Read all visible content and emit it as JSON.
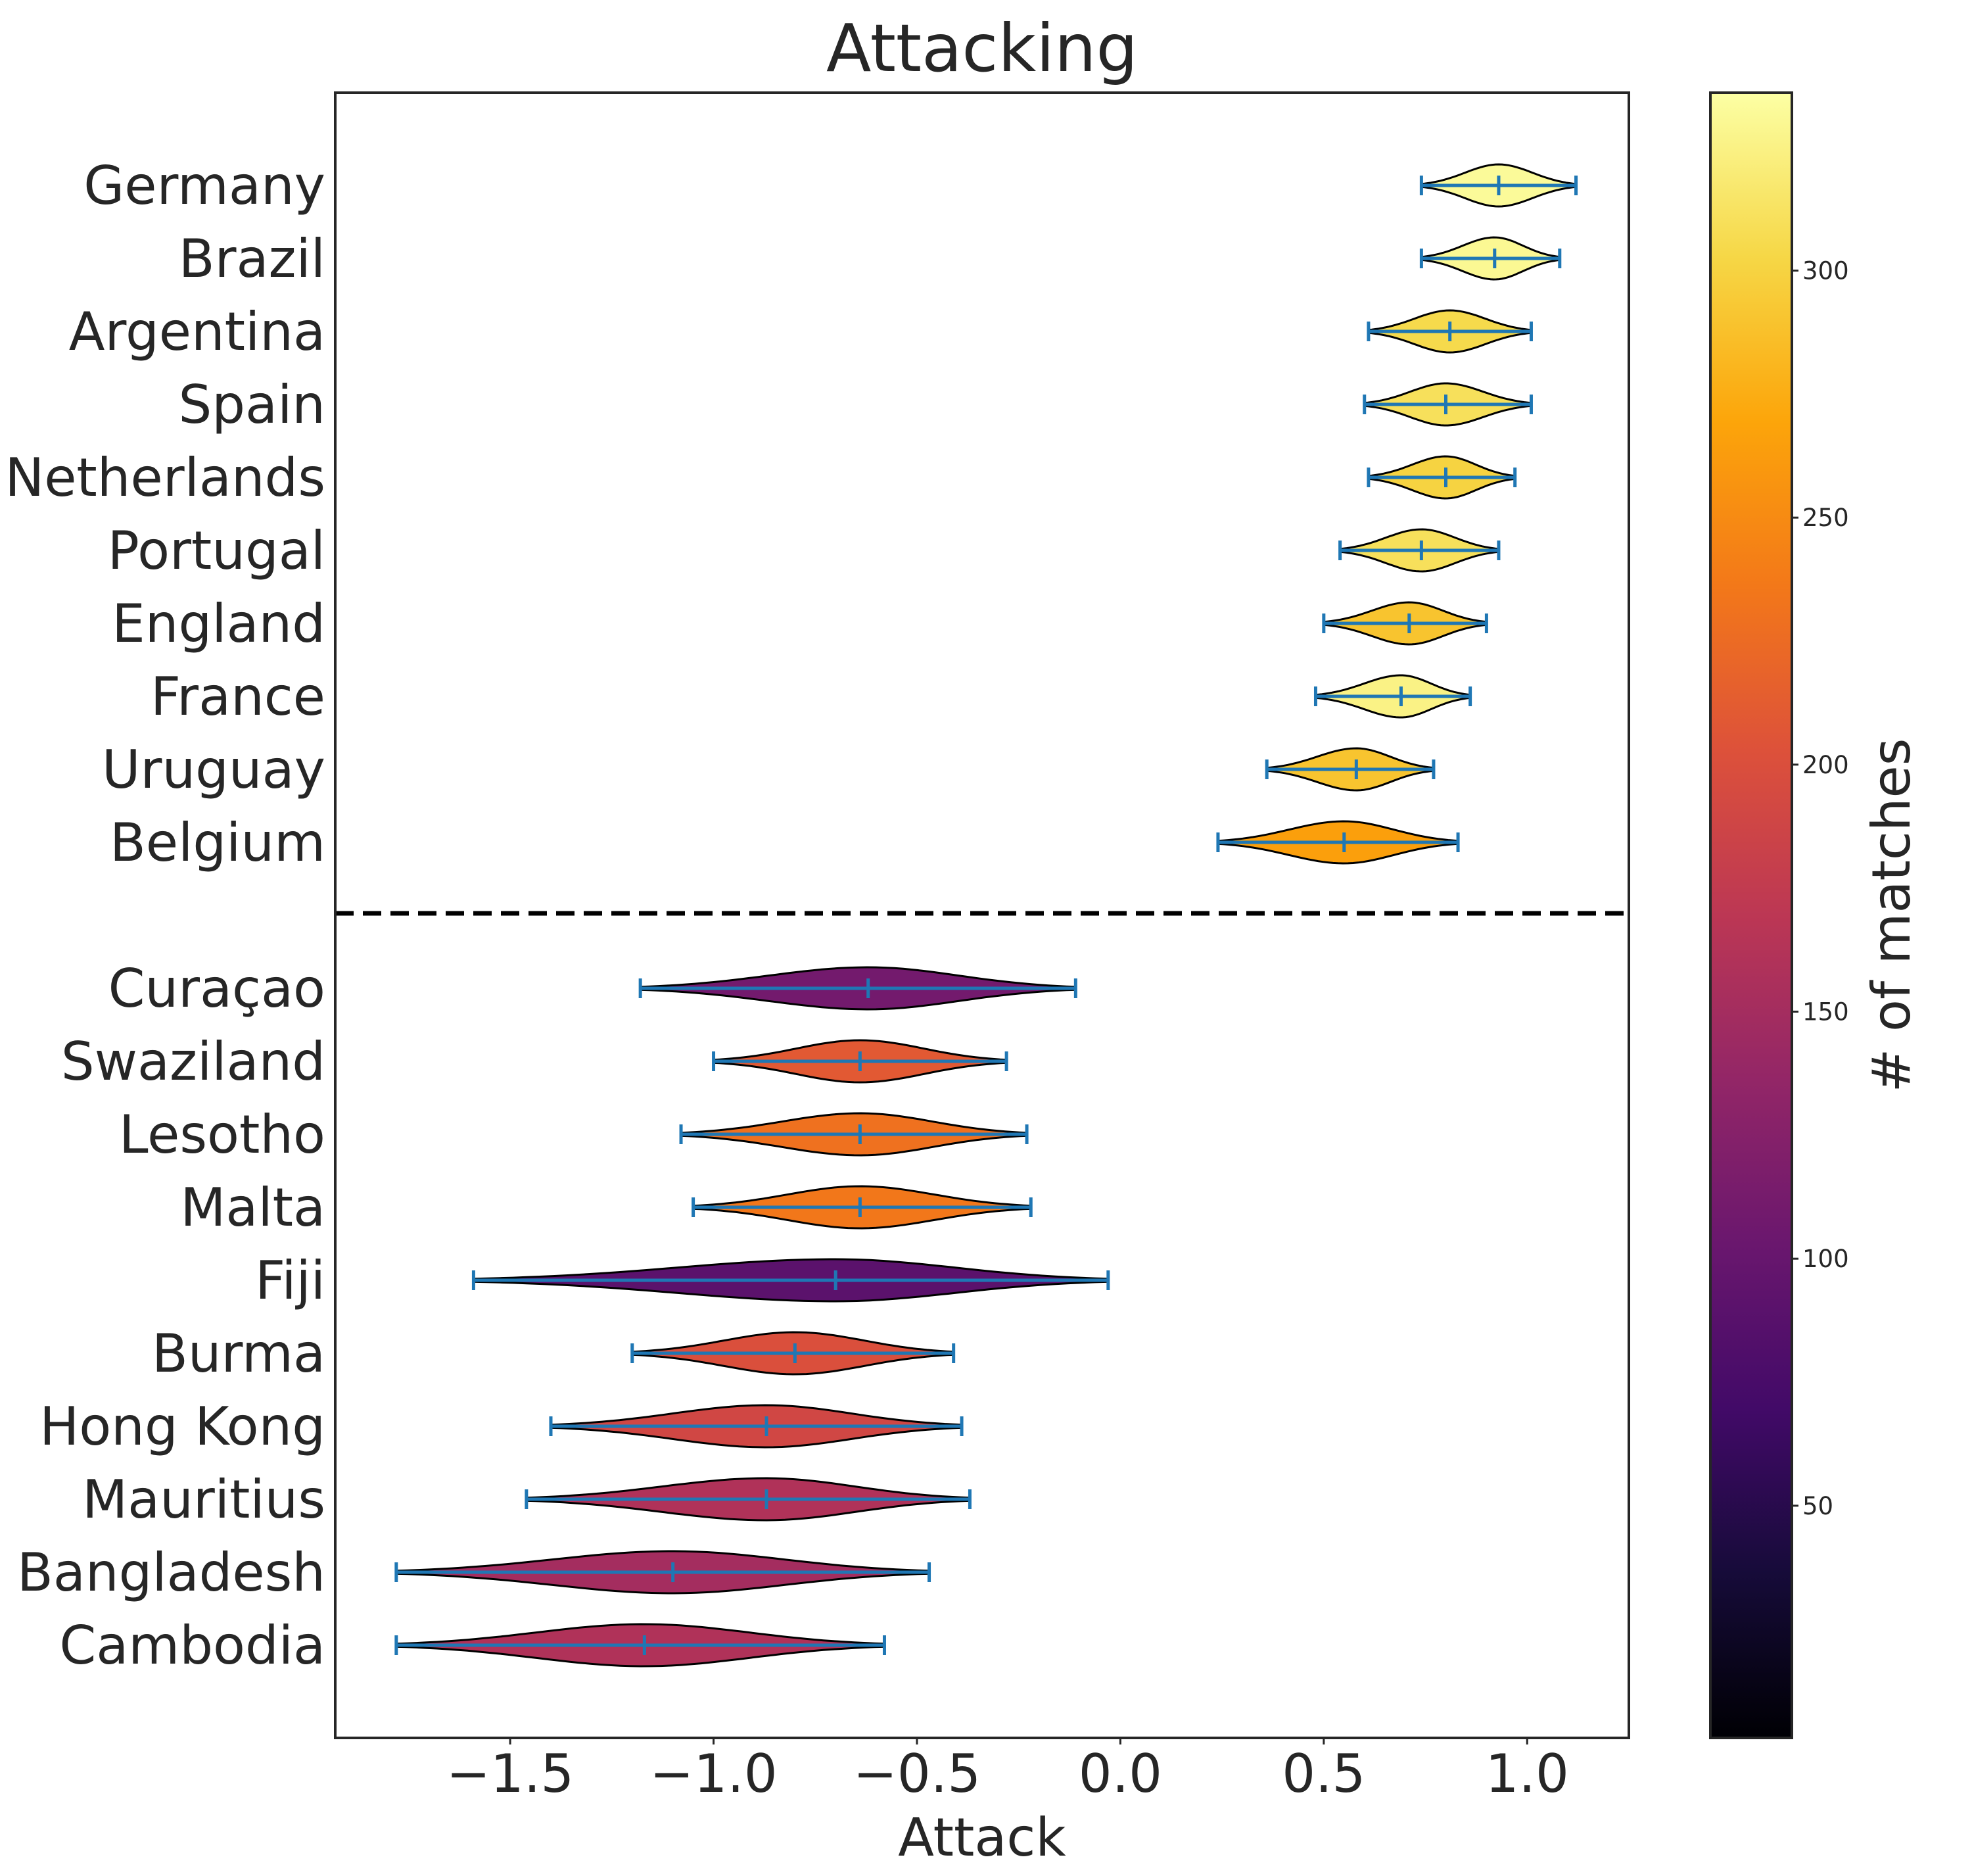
{
  "chart_data": {
    "type": "violin",
    "title": "Attacking",
    "xlabel": "Attack",
    "ylabel": "",
    "xlim": [
      -1.93,
      1.25
    ],
    "xticks": [
      -1.5,
      -1.0,
      -0.5,
      0.0,
      0.5,
      1.0
    ],
    "xtick_labels": [
      "−1.5",
      "−1.0",
      "−0.5",
      "0.0",
      "0.5",
      "1.0"
    ],
    "grid": false,
    "separator": "dashed line between top-10 and bottom-10 teams",
    "colorbar": {
      "label": "# of matches",
      "colormap": "inferno",
      "range": [
        3,
        336
      ],
      "ticks": [
        50,
        100,
        150,
        200,
        250,
        300
      ]
    },
    "teams": [
      {
        "name": "Germany",
        "group": "top",
        "min": 0.74,
        "max": 1.12,
        "mean": 0.93,
        "matches": 332
      },
      {
        "name": "Brazil",
        "group": "top",
        "min": 0.74,
        "max": 1.08,
        "mean": 0.92,
        "matches": 330
      },
      {
        "name": "Argentina",
        "group": "top",
        "min": 0.61,
        "max": 1.01,
        "mean": 0.81,
        "matches": 305
      },
      {
        "name": "Spain",
        "group": "top",
        "min": 0.6,
        "max": 1.01,
        "mean": 0.8,
        "matches": 310
      },
      {
        "name": "Netherlands",
        "group": "top",
        "min": 0.61,
        "max": 0.97,
        "mean": 0.8,
        "matches": 300
      },
      {
        "name": "Portugal",
        "group": "top",
        "min": 0.54,
        "max": 0.93,
        "mean": 0.74,
        "matches": 310
      },
      {
        "name": "England",
        "group": "top",
        "min": 0.5,
        "max": 0.9,
        "mean": 0.71,
        "matches": 290
      },
      {
        "name": "France",
        "group": "top",
        "min": 0.48,
        "max": 0.86,
        "mean": 0.69,
        "matches": 325
      },
      {
        "name": "Uruguay",
        "group": "top",
        "min": 0.36,
        "max": 0.77,
        "mean": 0.58,
        "matches": 290
      },
      {
        "name": "Belgium",
        "group": "top",
        "min": 0.24,
        "max": 0.83,
        "mean": 0.55,
        "matches": 265
      },
      {
        "name": "Curaçao",
        "group": "bottom",
        "min": -1.18,
        "max": -0.11,
        "mean": -0.62,
        "matches": 110
      },
      {
        "name": "Swaziland",
        "group": "bottom",
        "min": -1.0,
        "max": -0.28,
        "mean": -0.64,
        "matches": 210
      },
      {
        "name": "Lesotho",
        "group": "bottom",
        "min": -1.08,
        "max": -0.23,
        "mean": -0.64,
        "matches": 230
      },
      {
        "name": "Malta",
        "group": "bottom",
        "min": -1.05,
        "max": -0.22,
        "mean": -0.64,
        "matches": 235
      },
      {
        "name": "Fiji",
        "group": "bottom",
        "min": -1.59,
        "max": -0.03,
        "mean": -0.7,
        "matches": 90
      },
      {
        "name": "Burma",
        "group": "bottom",
        "min": -1.2,
        "max": -0.41,
        "mean": -0.8,
        "matches": 200
      },
      {
        "name": "Hong Kong",
        "group": "bottom",
        "min": -1.4,
        "max": -0.39,
        "mean": -0.87,
        "matches": 190
      },
      {
        "name": "Mauritius",
        "group": "bottom",
        "min": -1.46,
        "max": -0.37,
        "mean": -0.87,
        "matches": 160
      },
      {
        "name": "Bangladesh",
        "group": "bottom",
        "min": -1.78,
        "max": -0.47,
        "mean": -1.1,
        "matches": 150
      },
      {
        "name": "Cambodia",
        "group": "bottom",
        "min": -1.78,
        "max": -0.58,
        "mean": -1.17,
        "matches": 160
      }
    ]
  },
  "colors": {
    "errorbar": "#1f77b4",
    "outline": "#000000",
    "separator": "#000000",
    "frame": "#262626"
  }
}
